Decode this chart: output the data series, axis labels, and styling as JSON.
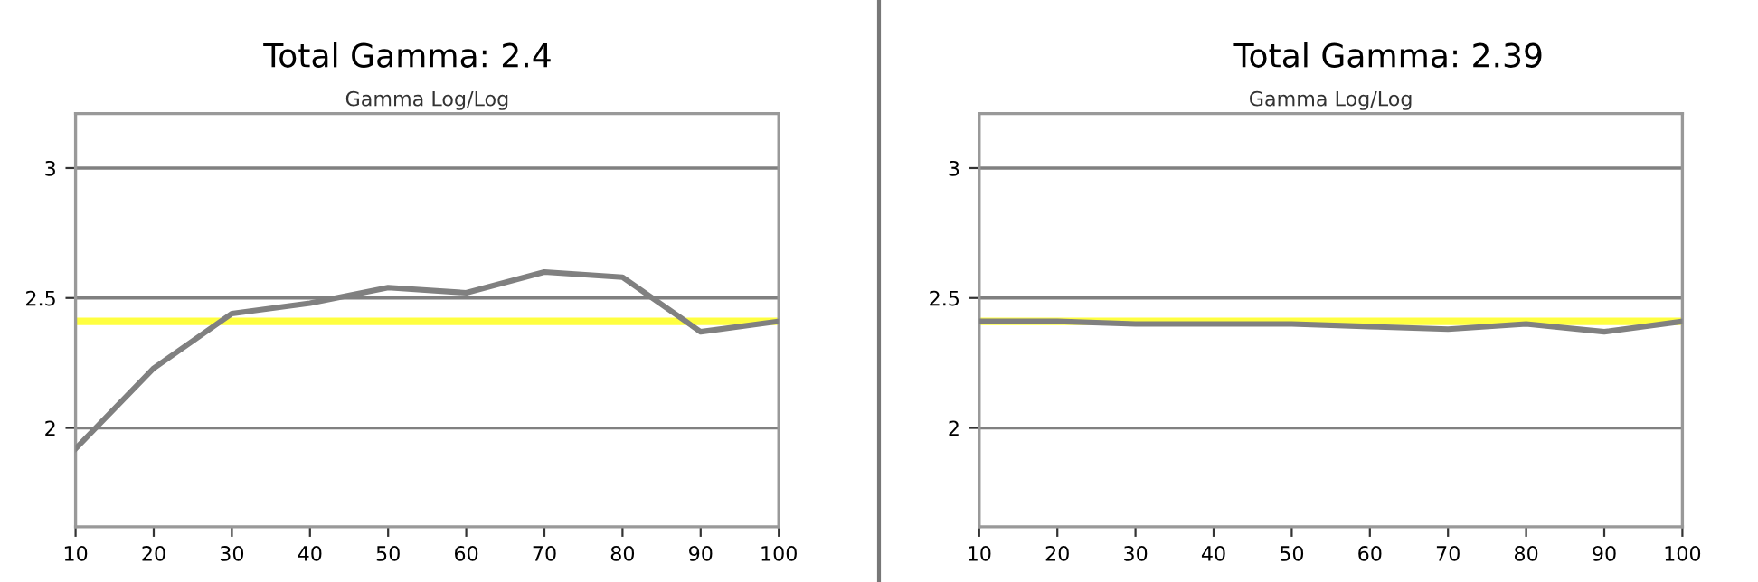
{
  "chart_data": [
    {
      "type": "line",
      "title": "Total Gamma: 2.4",
      "subtitle": "Gamma Log/Log",
      "x": [
        10,
        20,
        30,
        40,
        50,
        60,
        70,
        80,
        90,
        100
      ],
      "series": [
        {
          "color": "#808080",
          "values": [
            1.92,
            2.23,
            2.44,
            2.48,
            2.54,
            2.52,
            2.6,
            2.58,
            2.37,
            2.41
          ]
        }
      ],
      "ref_lines": [
        {
          "axis": "y",
          "value": 2.41,
          "color": "#ffff40"
        }
      ],
      "xlim": [
        10,
        100
      ],
      "xticks": [
        10,
        20,
        30,
        40,
        50,
        60,
        70,
        80,
        90,
        100
      ],
      "ylim": [
        1.62,
        3.21
      ],
      "yticks": [
        2,
        2.5,
        3
      ],
      "grid": "y",
      "marker": "none",
      "line_style": "solid"
    },
    {
      "type": "line",
      "title": "Total Gamma: 2.39",
      "subtitle": "Gamma Log/Log",
      "x": [
        10,
        20,
        30,
        40,
        50,
        60,
        70,
        80,
        90,
        100
      ],
      "series": [
        {
          "color": "#808080",
          "values": [
            2.41,
            2.41,
            2.4,
            2.4,
            2.4,
            2.39,
            2.38,
            2.4,
            2.37,
            2.41
          ]
        }
      ],
      "ref_lines": [
        {
          "axis": "y",
          "value": 2.41,
          "color": "#ffff40"
        }
      ],
      "xlim": [
        10,
        100
      ],
      "xticks": [
        10,
        20,
        30,
        40,
        50,
        60,
        70,
        80,
        90,
        100
      ],
      "ylim": [
        1.62,
        3.21
      ],
      "yticks": [
        2,
        2.5,
        3
      ],
      "grid": "y",
      "marker": "none",
      "line_style": "solid"
    }
  ]
}
